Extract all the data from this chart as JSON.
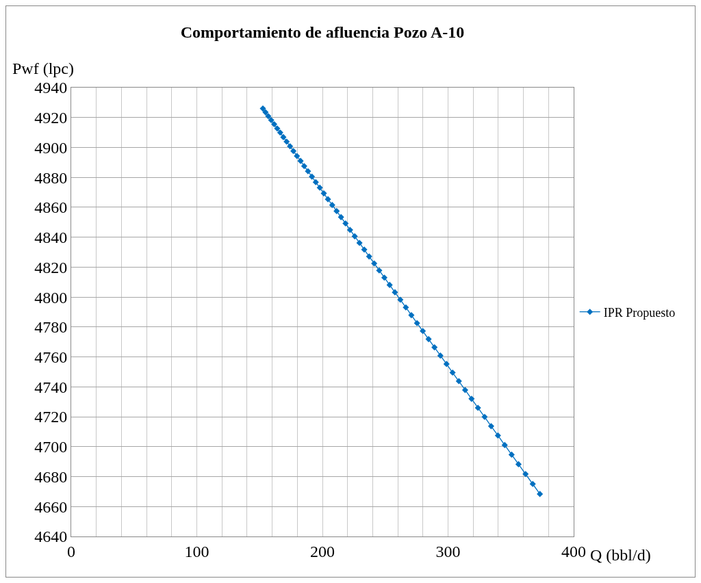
{
  "chart_data": {
    "type": "line",
    "title": "Comportamiento de afluencia Pozo A-10",
    "xlabel": "Q (bbl/d)",
    "ylabel": "Pwf (lpc)",
    "x": [
      152.6,
      154.7,
      156.9,
      159.2,
      161.6,
      164.0,
      166.4,
      168.9,
      171.5,
      174.2,
      176.9,
      179.7,
      182.6,
      185.5,
      188.5,
      191.6,
      194.7,
      197.9,
      201.1,
      204.4,
      207.8,
      211.3,
      214.8,
      218.4,
      222.0,
      225.7,
      229.5,
      233.3,
      237.2,
      241.2,
      245.2,
      249.3,
      253.5,
      257.7,
      262.0,
      266.4,
      270.8,
      275.3,
      279.9,
      284.5,
      289.2,
      293.9,
      298.8,
      303.6,
      308.6,
      313.6,
      318.7,
      323.8,
      329.1,
      334.3,
      339.7,
      345.1,
      350.6,
      356.1,
      361.7,
      367.4,
      373.1
    ],
    "series": [
      {
        "name": "IPR Propuesto",
        "color": "#0070c0",
        "values": [
          4926,
          4923.5,
          4920.9,
          4918.3,
          4915.5,
          4912.7,
          4909.9,
          4906.9,
          4903.9,
          4900.8,
          4897.6,
          4894.3,
          4891.0,
          4887.5,
          4884.1,
          4880.5,
          4876.8,
          4873.1,
          4869.3,
          4865.4,
          4861.5,
          4857.5,
          4853.4,
          4849.2,
          4844.9,
          4840.6,
          4836.2,
          4831.7,
          4827.1,
          4822.5,
          4817.8,
          4813.0,
          4808.1,
          4803.2,
          4798.2,
          4793.1,
          4787.9,
          4782.6,
          4777.3,
          4771.9,
          4766.4,
          4760.9,
          4755.3,
          4749.5,
          4743.8,
          4737.9,
          4732.0,
          4726.0,
          4719.9,
          4713.7,
          4707.5,
          4701.1,
          4694.7,
          4688.3,
          4681.7,
          4675.1,
          4668.4
        ]
      }
    ],
    "xlim": [
      0,
      400
    ],
    "xticks": [
      0,
      {
        "value": 20,
        "label": null
      },
      {
        "value": 40,
        "label": null
      },
      {
        "value": 60,
        "label": null
      },
      {
        "value": 80,
        "label": null
      },
      100,
      {
        "value": 120,
        "label": null
      },
      {
        "value": 140,
        "label": null
      },
      {
        "value": 160,
        "label": null
      },
      {
        "value": 180,
        "label": null
      },
      200,
      {
        "value": 220,
        "label": null
      },
      {
        "value": 240,
        "label": null
      },
      {
        "value": 260,
        "label": null
      },
      {
        "value": 280,
        "label": null
      },
      300,
      {
        "value": 320,
        "label": null
      },
      {
        "value": 340,
        "label": null
      },
      {
        "value": 360,
        "label": null
      },
      {
        "value": 380,
        "label": null
      },
      400
    ],
    "ylim": [
      4640,
      4940
    ],
    "yticks": [
      4640,
      4660,
      4680,
      4700,
      4720,
      4740,
      4760,
      4780,
      4800,
      4820,
      4840,
      4860,
      4880,
      4900,
      4920,
      4940
    ],
    "grid": true,
    "legend": "right",
    "marker": "diamond",
    "line_style": "solid"
  }
}
